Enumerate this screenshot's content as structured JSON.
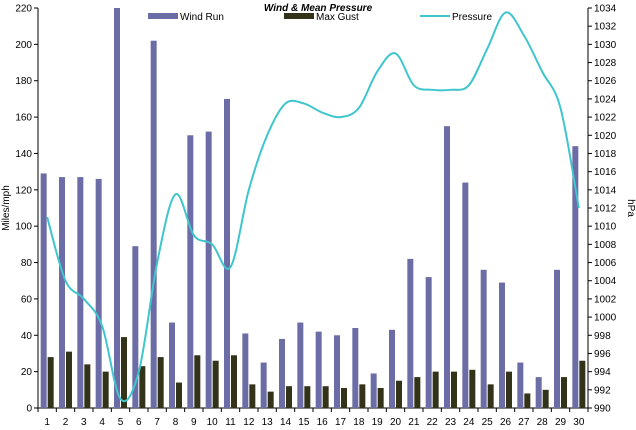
{
  "chart_data": {
    "type": "bar",
    "title": "Wind & Mean Pressure",
    "xlabel": "",
    "ylabel": "Miles/mph",
    "y2label": "hPa",
    "ylim": [
      0,
      220
    ],
    "y2lim": [
      990,
      1034
    ],
    "yticks": [
      "0",
      "20",
      "40",
      "60",
      "80",
      "100",
      "120",
      "140",
      "160",
      "180",
      "200",
      "220"
    ],
    "y2ticks": [
      "990",
      "992",
      "994",
      "996",
      "998",
      "1000",
      "1002",
      "1004",
      "1006",
      "1008",
      "1010",
      "1012",
      "1014",
      "1016",
      "1018",
      "1020",
      "1022",
      "1024",
      "1026",
      "1028",
      "1030",
      "1032",
      "1034"
    ],
    "categories": [
      "1",
      "2",
      "3",
      "4",
      "5",
      "6",
      "7",
      "8",
      "9",
      "10",
      "11",
      "12",
      "13",
      "14",
      "15",
      "16",
      "17",
      "18",
      "19",
      "20",
      "21",
      "22",
      "23",
      "24",
      "25",
      "26",
      "27",
      "28",
      "29",
      "30"
    ],
    "series": [
      {
        "name": "Wind Run",
        "kind": "bar",
        "axis": "left",
        "color": "#6c6ca6",
        "values": [
          129,
          127,
          127,
          126,
          221,
          89,
          202,
          47,
          150,
          152,
          170,
          41,
          25,
          38,
          47,
          42,
          40,
          44,
          19,
          43,
          82,
          72,
          155,
          124,
          76,
          69,
          25,
          17,
          76,
          144
        ]
      },
      {
        "name": "Max Gust",
        "kind": "bar",
        "axis": "left",
        "color": "#33331a",
        "values": [
          28,
          31,
          24,
          20,
          39,
          23,
          28,
          14,
          29,
          26,
          29,
          13,
          9,
          12,
          12,
          12,
          11,
          13,
          11,
          15,
          17,
          20,
          20,
          21,
          13,
          20,
          8,
          10,
          17,
          26
        ]
      },
      {
        "name": "Pressure",
        "kind": "line",
        "axis": "right",
        "color": "#3ec6cc",
        "values": [
          1011,
          1004,
          1002,
          999,
          991,
          994,
          1006,
          1013.5,
          1009,
          1008,
          1005.5,
          1014,
          1020,
          1023.5,
          1023.5,
          1022.5,
          1022,
          1023,
          1027,
          1029,
          1025.5,
          1025,
          1025,
          1025.5,
          1029.5,
          1033.5,
          1031,
          1027,
          1023,
          1012
        ]
      }
    ],
    "grid": false,
    "legend": "top"
  }
}
